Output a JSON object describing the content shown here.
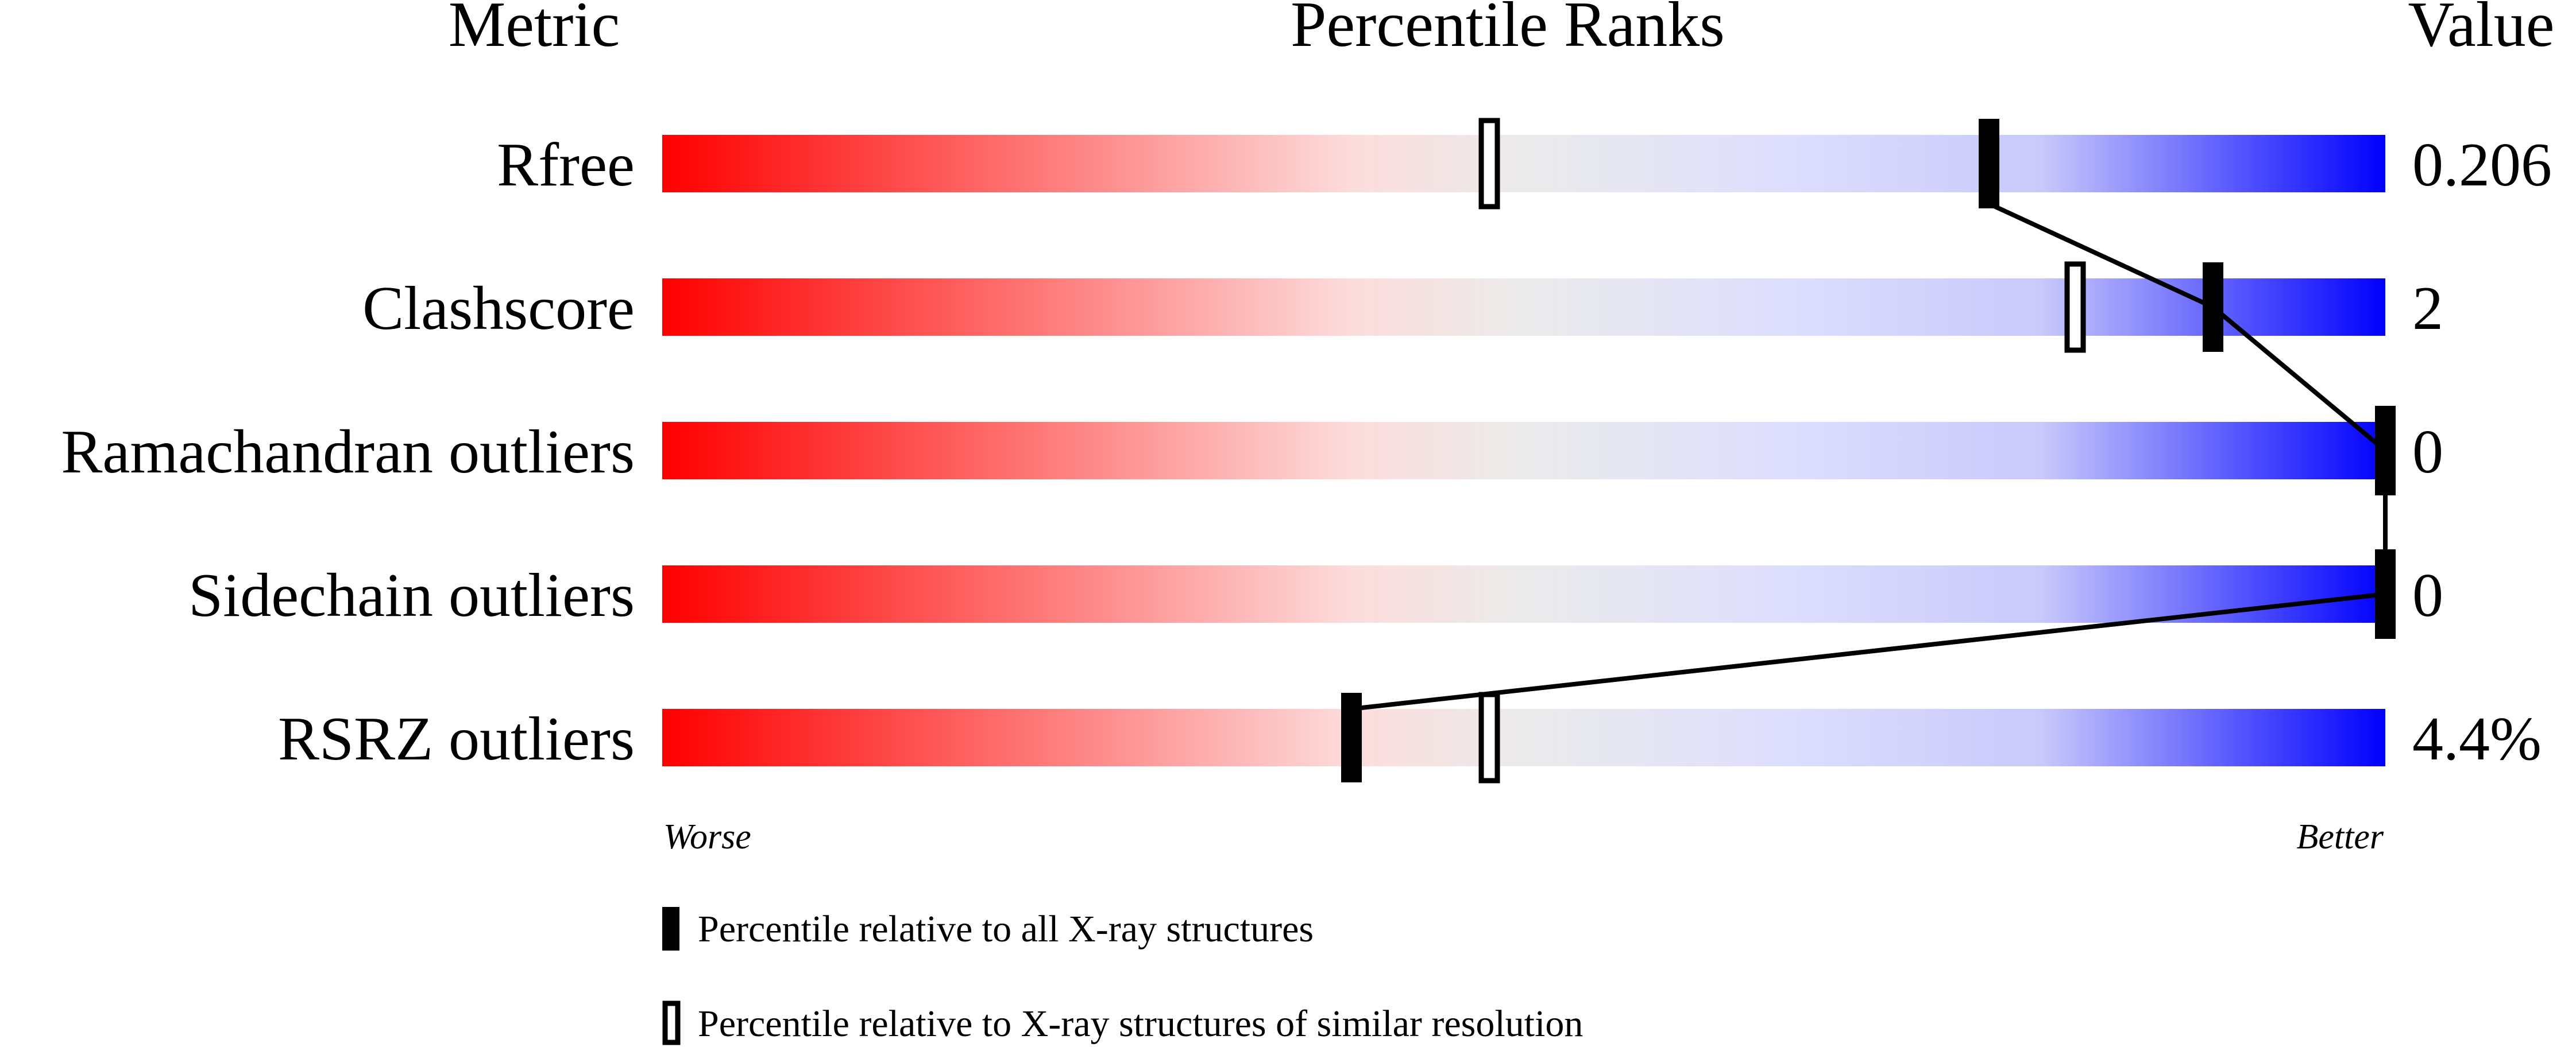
{
  "chart_data": {
    "type": "percentile-slider",
    "headers": {
      "metric": "Metric",
      "ranks": "Percentile Ranks",
      "value": "Value"
    },
    "axis": {
      "left_label": "Worse",
      "right_label": "Better",
      "xlim": [
        0,
        100
      ]
    },
    "gradient_colors": [
      "#ff0000",
      "#fddcdc",
      "#ebebeb",
      "#dedefe",
      "#0000ff"
    ],
    "metrics": [
      {
        "name": "Rfree",
        "value": "0.206",
        "percentile_all": 77,
        "percentile_similar": 48
      },
      {
        "name": "Clashscore",
        "value": "2",
        "percentile_all": 90,
        "percentile_similar": 82
      },
      {
        "name": "Ramachandran outliers",
        "value": "0",
        "percentile_all": 100,
        "percentile_similar": null
      },
      {
        "name": "Sidechain outliers",
        "value": "0",
        "percentile_all": 100,
        "percentile_similar": null
      },
      {
        "name": "RSRZ outliers",
        "value": "4.4%",
        "percentile_all": 40,
        "percentile_similar": 48
      }
    ],
    "legend": [
      {
        "marker": "filled",
        "label": "Percentile relative to all X-ray structures"
      },
      {
        "marker": "open",
        "label": "Percentile relative to X-ray structures of similar resolution"
      }
    ]
  }
}
